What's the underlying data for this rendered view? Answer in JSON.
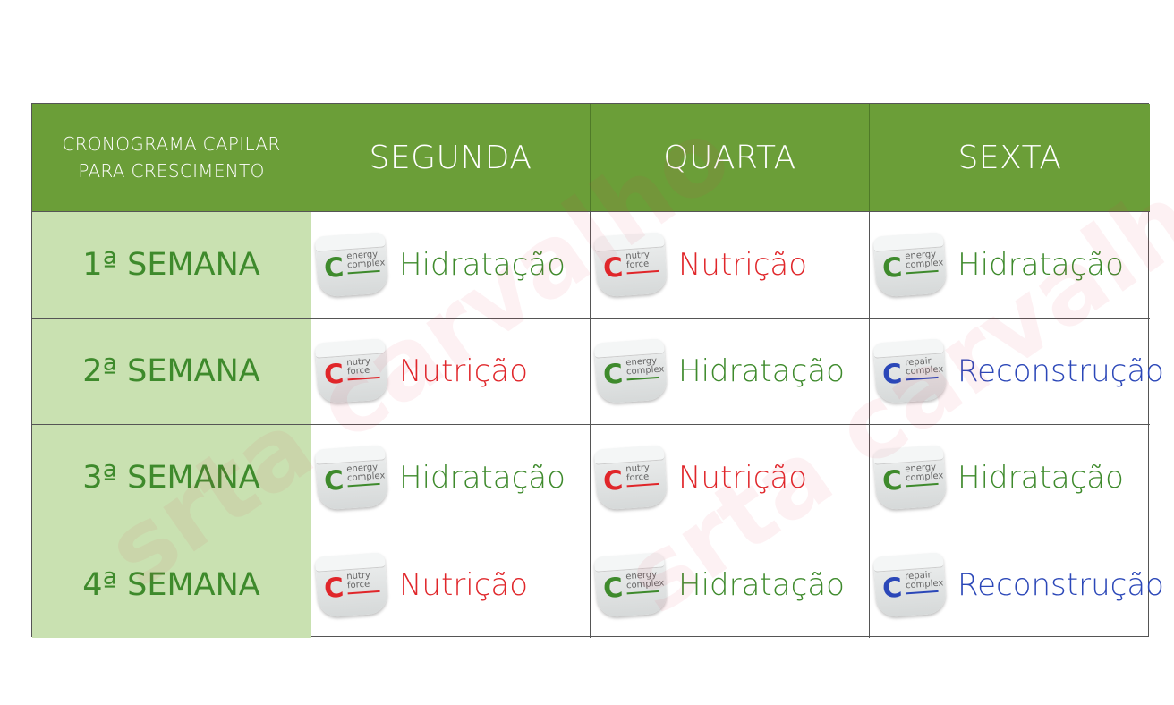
{
  "header": {
    "title_line1": "CRONOGRAMA CAPILAR",
    "title_line2": "PARA CRESCIMENTO",
    "days": [
      "SEGUNDA",
      "QUARTA",
      "SEXTA"
    ]
  },
  "colors": {
    "header_bg": "#6b9e38",
    "week_bg": "#c9e1b1",
    "hidratacao": "#3e8a2c",
    "nutricao": "#e0262a",
    "reconstrucao": "#2b47b8"
  },
  "products": {
    "energy": {
      "c_letter": "C",
      "line1": "energy",
      "line2": "complex",
      "color": "#3e8a2c"
    },
    "nutry": {
      "c_letter": "C",
      "line1": "nutry",
      "line2": "force",
      "color": "#e0262a"
    },
    "repair": {
      "c_letter": "C",
      "line1": "repair",
      "line2": "complex",
      "color": "#2b47b8"
    }
  },
  "weeks": [
    {
      "label": "1ª SEMANA",
      "cells": [
        {
          "product": "energy",
          "label": "Hidratação",
          "type": "hidratacao"
        },
        {
          "product": "nutry",
          "label": "Nutrição",
          "type": "nutricao"
        },
        {
          "product": "energy",
          "label": "Hidratação",
          "type": "hidratacao"
        }
      ]
    },
    {
      "label": "2ª SEMANA",
      "cells": [
        {
          "product": "nutry",
          "label": "Nutrição",
          "type": "nutricao"
        },
        {
          "product": "energy",
          "label": "Hidratação",
          "type": "hidratacao"
        },
        {
          "product": "repair",
          "label": "Reconstrução",
          "type": "reconstrucao"
        }
      ]
    },
    {
      "label": "3ª SEMANA",
      "cells": [
        {
          "product": "energy",
          "label": "Hidratação",
          "type": "hidratacao"
        },
        {
          "product": "nutry",
          "label": "Nutrição",
          "type": "nutricao"
        },
        {
          "product": "energy",
          "label": "Hidratação",
          "type": "hidratacao"
        }
      ]
    },
    {
      "label": "4ª SEMANA",
      "cells": [
        {
          "product": "nutry",
          "label": "Nutrição",
          "type": "nutricao"
        },
        {
          "product": "energy",
          "label": "Hidratação",
          "type": "hidratacao"
        },
        {
          "product": "repair",
          "label": "Reconstrução",
          "type": "reconstrucao"
        }
      ]
    }
  ],
  "watermark": "srta carvalho"
}
